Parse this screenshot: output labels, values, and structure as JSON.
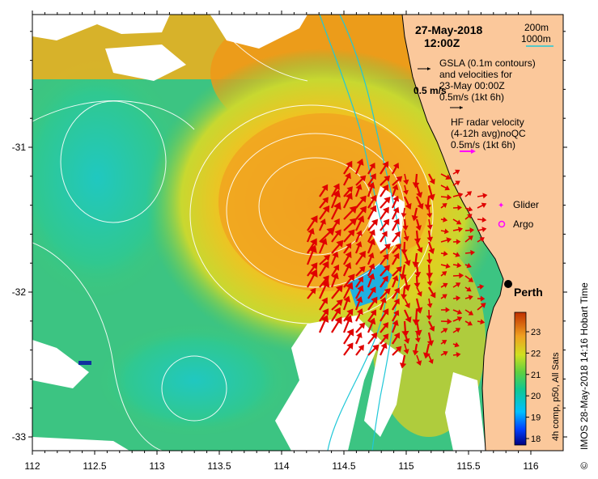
{
  "map": {
    "title_date": "27-May-2018",
    "title_time": "12:00Z",
    "depth_legend": [
      "200m",
      "1000m"
    ],
    "gsla_legend": {
      "line1": "GSLA (0.1m contours)",
      "line2": "and velocities for",
      "line3": "23-May 00:00Z",
      "line4": "0.5m/s (1kt 6h)"
    },
    "velocity_scale_label": "0.5 m/s",
    "hf_legend": {
      "line1": "HF radar velocity",
      "line2": "(4-12h avg)noQC",
      "line3": "0.5m/s (1kt 6h)"
    },
    "glider_label": "Glider",
    "argo_label": "Argo",
    "city_label": "Perth",
    "side_label": "IMOS 28-May-2018 14:16 Hobart Time",
    "copyright": "©",
    "colorbar": {
      "title": "4h comp, p50, All Sats",
      "ticks": [
        "18",
        "19",
        "20",
        "21",
        "22",
        "23"
      ]
    },
    "x_ticks": [
      "112",
      "112.5",
      "113",
      "113.5",
      "114",
      "114.5",
      "115",
      "115.5",
      "116"
    ],
    "y_ticks": [
      "-31",
      "-32",
      "-33"
    ],
    "colors": {
      "land": "#fbc89b",
      "warm": "#f0a020",
      "cool": "#2ec88a",
      "arrow": "#e00000",
      "glider": "#ff00ff",
      "isobath": "#20c8d8"
    }
  }
}
